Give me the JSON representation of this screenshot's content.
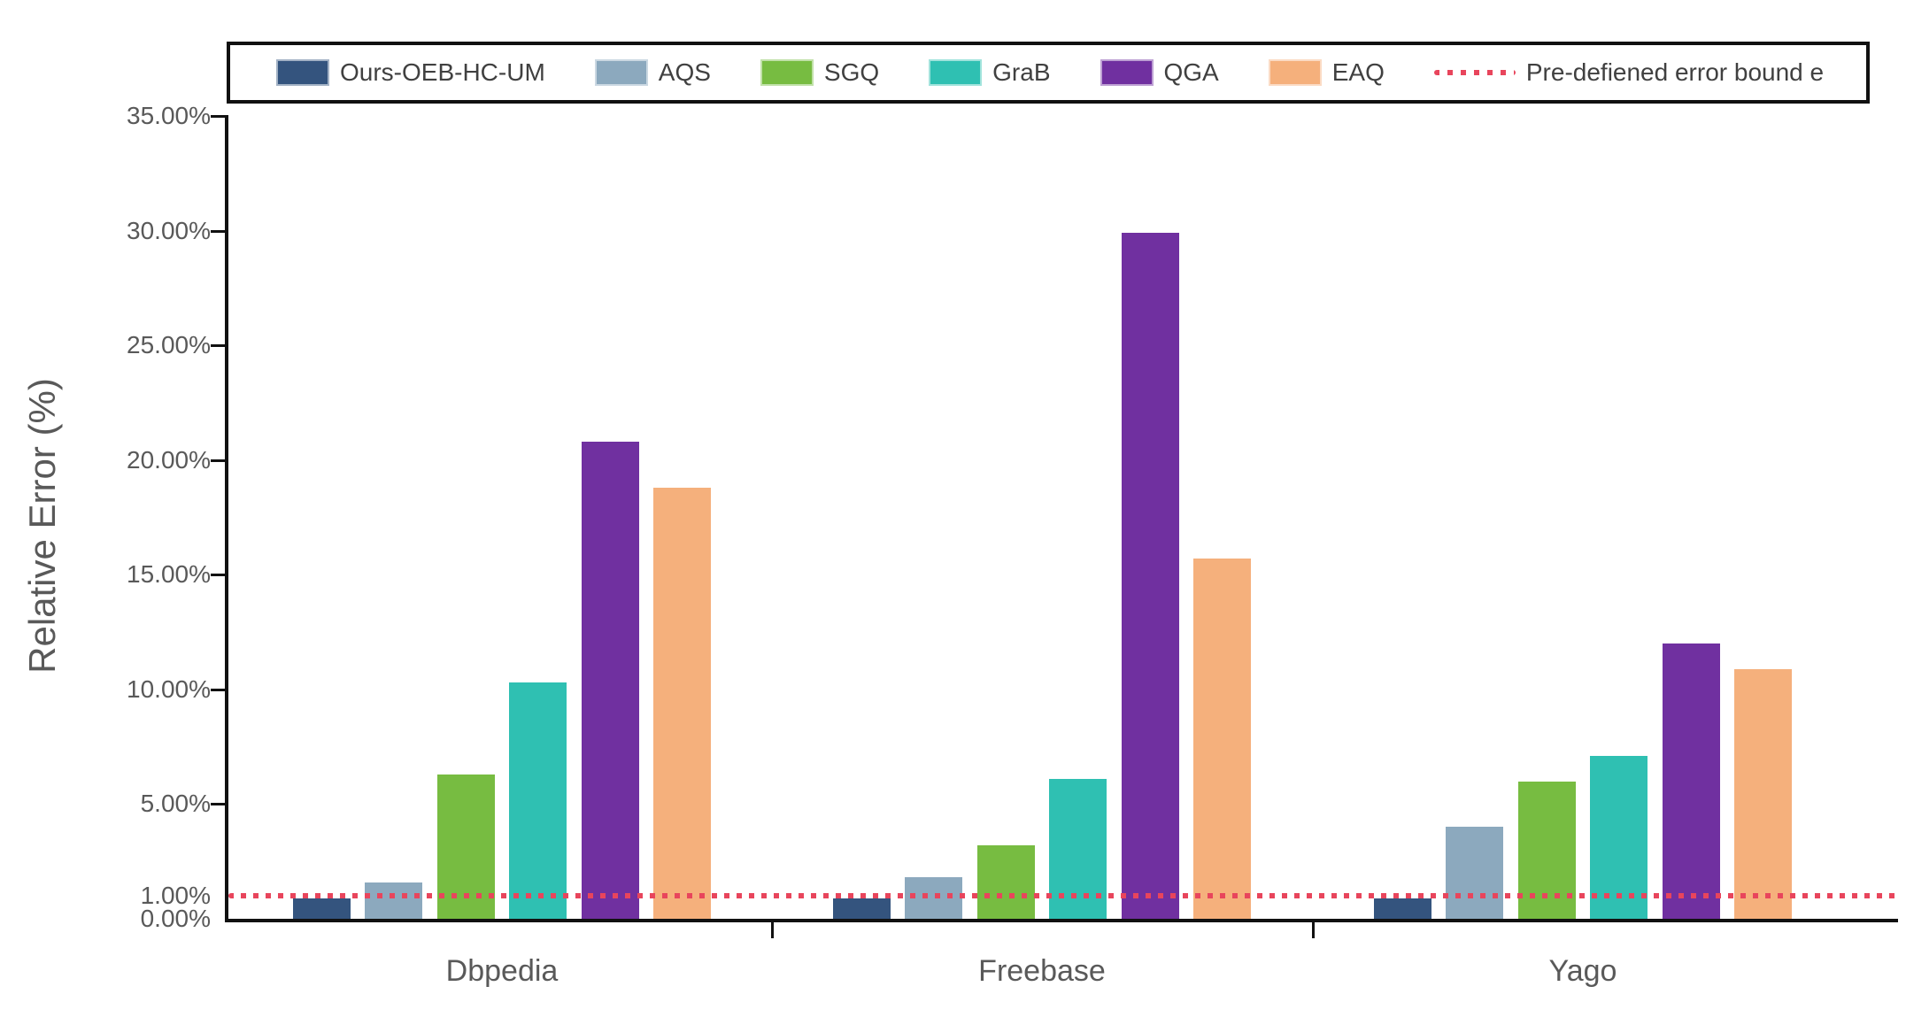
{
  "chart_data": {
    "type": "bar",
    "title": "",
    "xlabel": "",
    "ylabel": "Relative Error (%)",
    "ylim": [
      0,
      35
    ],
    "grid": false,
    "legend_position": "top",
    "categories": [
      "Dbpedia",
      "Freebase",
      "Yago"
    ],
    "y_ticks": [
      {
        "label": "35.00%",
        "value": 35
      },
      {
        "label": "30.00%",
        "value": 30
      },
      {
        "label": "25.00%",
        "value": 25
      },
      {
        "label": "20.00%",
        "value": 20
      },
      {
        "label": "15.00%",
        "value": 15
      },
      {
        "label": "10.00%",
        "value": 10
      },
      {
        "label": "5.00%",
        "value": 5
      },
      {
        "label": "1.00%",
        "value": 1
      },
      {
        "label": "0.00%",
        "value": 0
      }
    ],
    "series": [
      {
        "name": "Ours-OEB-HC-UM",
        "color": "#34547E",
        "values": [
          0.9,
          0.9,
          0.9
        ]
      },
      {
        "name": "AQS",
        "color": "#8CA9BE",
        "values": [
          1.6,
          1.8,
          4.0
        ]
      },
      {
        "name": "SGQ",
        "color": "#77BC41",
        "values": [
          6.3,
          3.2,
          6.0
        ]
      },
      {
        "name": "GraB",
        "color": "#2FC0B2",
        "values": [
          10.3,
          6.1,
          7.1
        ]
      },
      {
        "name": "QGA",
        "color": "#7030A0",
        "values": [
          20.8,
          29.9,
          12.0
        ]
      },
      {
        "name": "EAQ",
        "color": "#F5B07C",
        "values": [
          18.8,
          15.7,
          10.9
        ]
      }
    ],
    "error_bound_line": {
      "label": "Pre-defiened error bound e",
      "value": 1.0,
      "color": "#E8455C",
      "style": "dotted"
    }
  },
  "colors": {
    "axis": "#111111",
    "tick_text": "#595959",
    "legend_text": "#404040"
  }
}
